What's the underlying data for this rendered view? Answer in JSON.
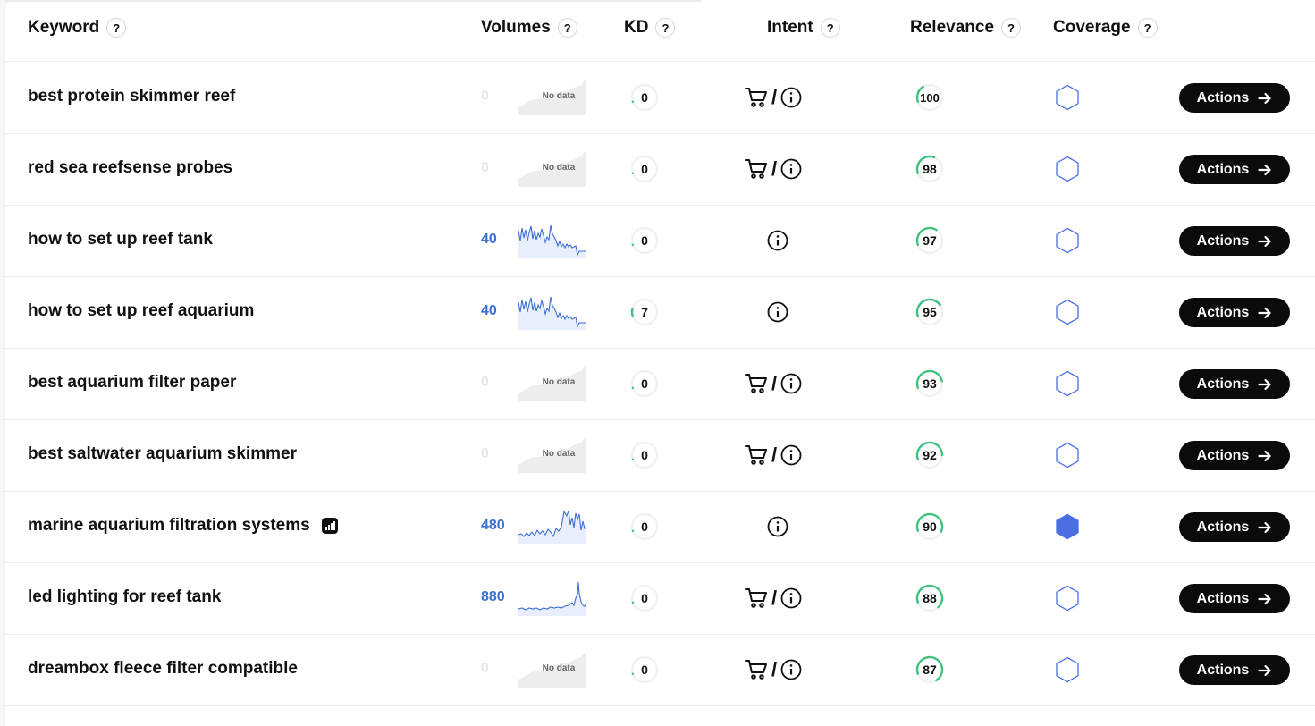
{
  "header": {
    "keyword": "Keyword",
    "volumes": "Volumes",
    "kd": "KD",
    "intent": "Intent",
    "relevance": "Relevance",
    "coverage": "Coverage",
    "help_symbol": "?"
  },
  "actions_label": "Actions",
  "no_data_label": "No data",
  "intent_separator": "/",
  "colors": {
    "volume_blue": "#3c6fd6",
    "relevance_green": "#3fc27f",
    "coverage_blue": "#4a6fe3",
    "button_black": "#0b0b0b"
  },
  "rows": [
    {
      "keyword": "best protein skimmer reef",
      "volume": "0",
      "has_trend": false,
      "kd": "0",
      "intent": [
        "commercial",
        "informational"
      ],
      "relevance": "100",
      "coverage_filled": false,
      "trend_icon": false
    },
    {
      "keyword": "red sea reefsense probes",
      "volume": "0",
      "has_trend": false,
      "kd": "0",
      "intent": [
        "commercial",
        "informational"
      ],
      "relevance": "98",
      "coverage_filled": false,
      "trend_icon": false
    },
    {
      "keyword": "how to set up reef tank",
      "volume": "40",
      "has_trend": true,
      "trend": "a",
      "kd": "0",
      "intent": [
        "informational"
      ],
      "relevance": "97",
      "coverage_filled": false,
      "trend_icon": false
    },
    {
      "keyword": "how to set up reef aquarium",
      "volume": "40",
      "has_trend": true,
      "trend": "a",
      "kd": "7",
      "intent": [
        "informational"
      ],
      "relevance": "95",
      "coverage_filled": false,
      "trend_icon": false
    },
    {
      "keyword": "best aquarium filter paper",
      "volume": "0",
      "has_trend": false,
      "kd": "0",
      "intent": [
        "commercial",
        "informational"
      ],
      "relevance": "93",
      "coverage_filled": false,
      "trend_icon": false
    },
    {
      "keyword": "best saltwater aquarium skimmer",
      "volume": "0",
      "has_trend": false,
      "kd": "0",
      "intent": [
        "commercial",
        "informational"
      ],
      "relevance": "92",
      "coverage_filled": false,
      "trend_icon": false
    },
    {
      "keyword": "marine aquarium filtration systems",
      "volume": "480",
      "has_trend": true,
      "trend": "b",
      "kd": "0",
      "intent": [
        "informational"
      ],
      "relevance": "90",
      "coverage_filled": true,
      "trend_icon": true
    },
    {
      "keyword": "led lighting for reef tank",
      "volume": "880",
      "has_trend": true,
      "trend": "c",
      "kd": "0",
      "intent": [
        "commercial",
        "informational"
      ],
      "relevance": "88",
      "coverage_filled": false,
      "trend_icon": false
    },
    {
      "keyword": "dreambox fleece filter compatible",
      "volume": "0",
      "has_trend": false,
      "kd": "0",
      "intent": [
        "commercial",
        "informational"
      ],
      "relevance": "87",
      "coverage_filled": false,
      "trend_icon": false
    }
  ]
}
